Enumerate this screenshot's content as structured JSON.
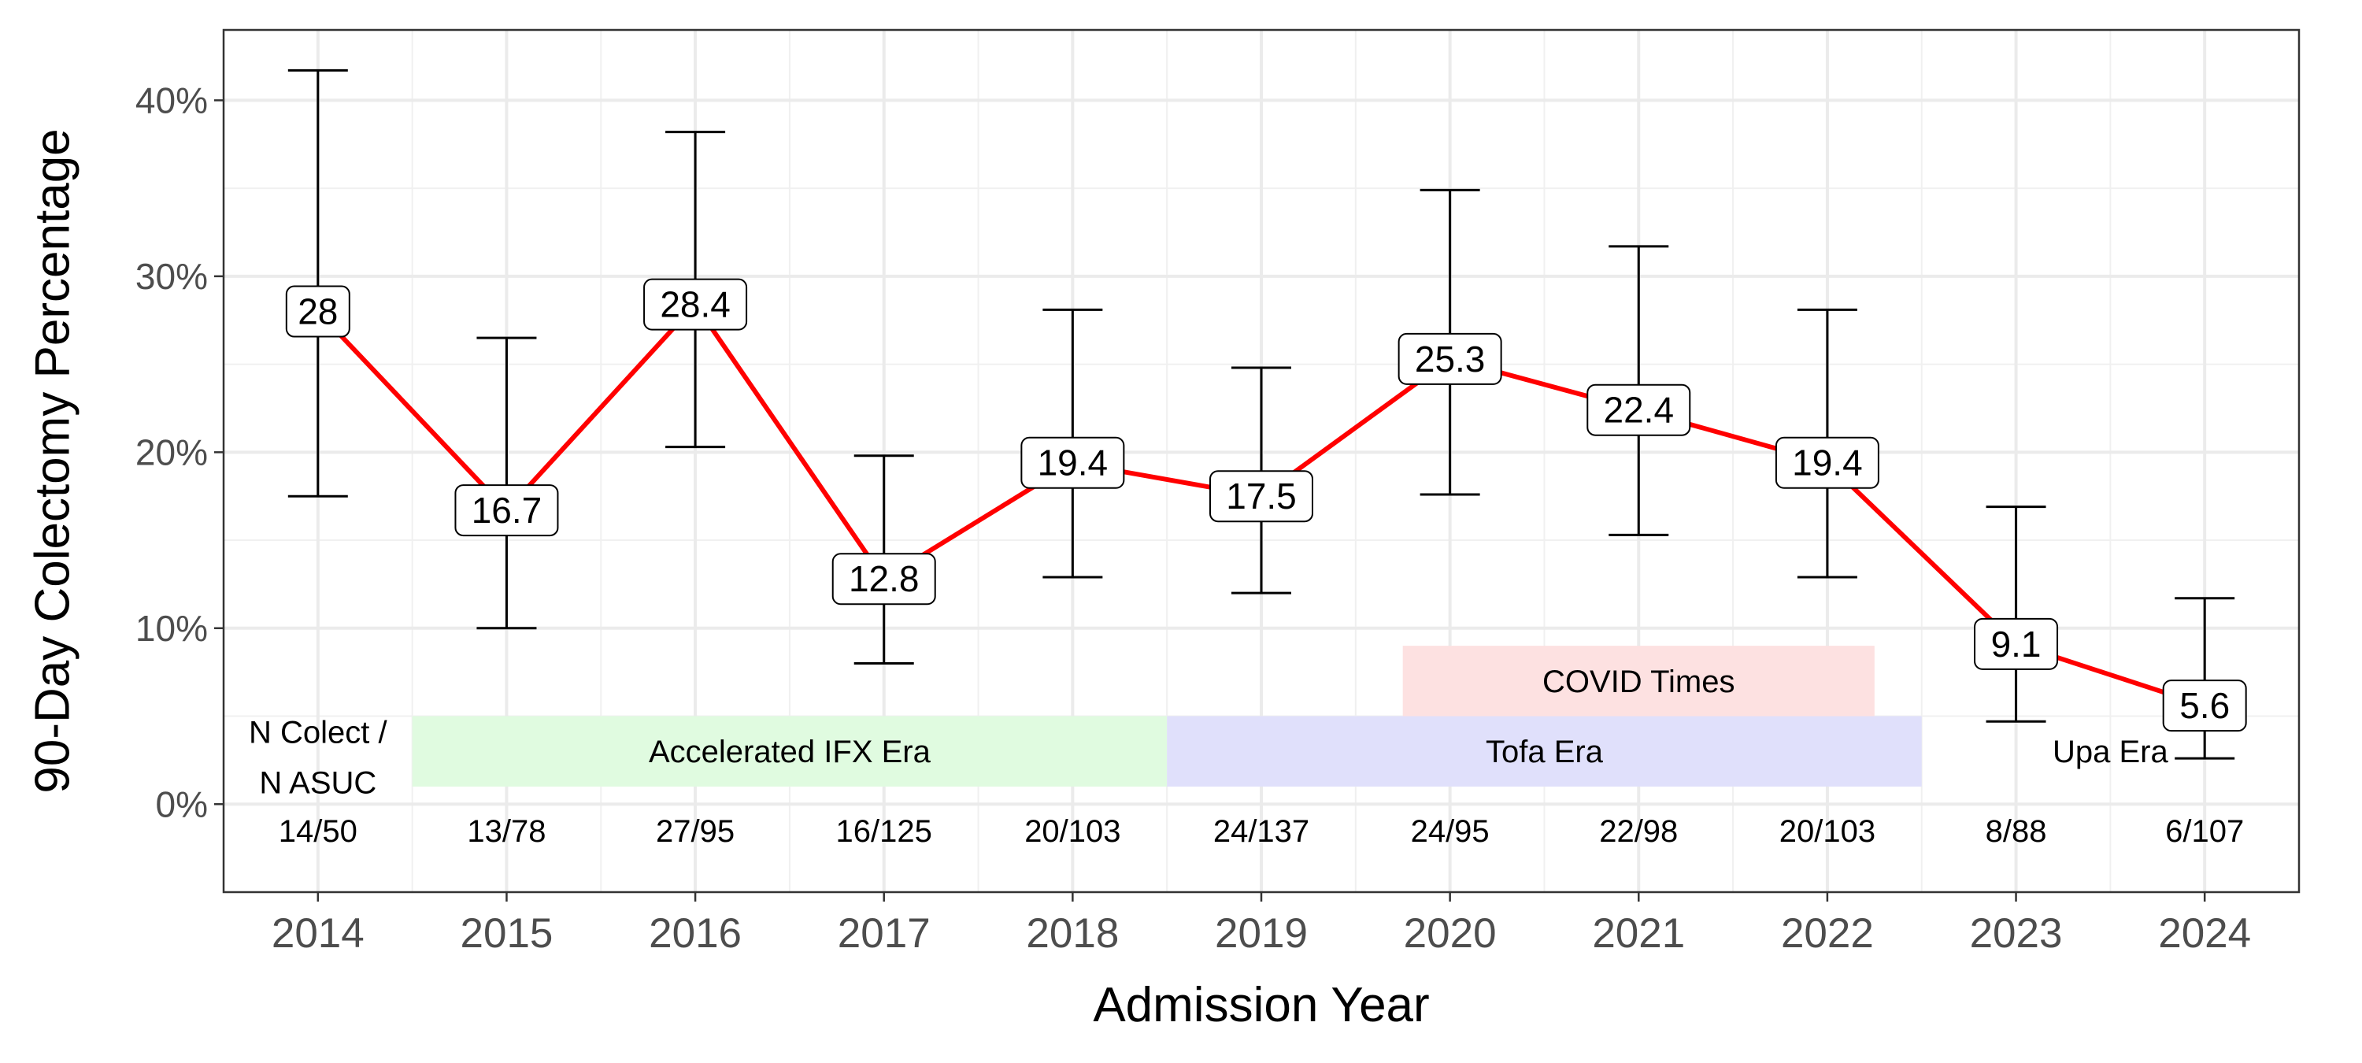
{
  "chart_data": {
    "type": "line",
    "xlabel": "Admission Year",
    "ylabel": "90-Day Colectomy Percentage",
    "ylim": [
      -5,
      44
    ],
    "xlim": [
      2013.5,
      2024.5
    ],
    "y_ticks": [
      0,
      10,
      20,
      30,
      40
    ],
    "y_tick_labels": [
      "0%",
      "10%",
      "20%",
      "30%",
      "40%"
    ],
    "x_ticks": [
      2014,
      2015,
      2016,
      2017,
      2018,
      2019,
      2020,
      2021,
      2022,
      2023,
      2024
    ],
    "grid": true,
    "line_color": "#ff0000",
    "series": [
      {
        "x": [
          2014,
          2015,
          2016,
          2017,
          2018,
          2019,
          2020,
          2021,
          2022,
          2023,
          2024
        ],
        "values": [
          28,
          16.7,
          28.4,
          12.8,
          19.4,
          17.5,
          25.3,
          22.4,
          19.4,
          9.1,
          5.6
        ],
        "value_labels": [
          "28",
          "16.7",
          "28.4",
          "12.8",
          "19.4",
          "17.5",
          "25.3",
          "22.4",
          "19.4",
          "9.1",
          "5.6"
        ],
        "ci_lower": [
          17.5,
          10.0,
          20.3,
          8.0,
          12.9,
          12.0,
          17.6,
          15.3,
          12.9,
          4.7,
          2.6
        ],
        "ci_upper": [
          41.7,
          26.5,
          38.2,
          19.8,
          28.1,
          24.8,
          34.9,
          31.7,
          28.1,
          16.9,
          11.7
        ],
        "counts": [
          "14/50",
          "13/78",
          "27/95",
          "16/125",
          "20/103",
          "24/137",
          "24/95",
          "22/98",
          "20/103",
          "8/88",
          "6/107"
        ]
      }
    ],
    "count_header": [
      "N Colect /",
      "N ASUC"
    ],
    "eras": [
      {
        "label": "Accelerated IFX Era",
        "x_start": 2014.5,
        "x_end": 2018.5,
        "y_start": 1,
        "y_end": 5,
        "color": "#e0fbe0"
      },
      {
        "label": "Tofa Era",
        "x_start": 2018.5,
        "x_end": 2022.5,
        "y_start": 1,
        "y_end": 5,
        "color": "#e0e0fb"
      },
      {
        "label": "COVID Times",
        "x_start": 2019.75,
        "x_end": 2022.25,
        "y_start": 5,
        "y_end": 9,
        "color": "#fde1e1"
      },
      {
        "label": "Upa Era",
        "x_start": 2022.5,
        "x_end": 2024.5,
        "y_start": 1,
        "y_end": 5,
        "color": "none"
      }
    ]
  }
}
